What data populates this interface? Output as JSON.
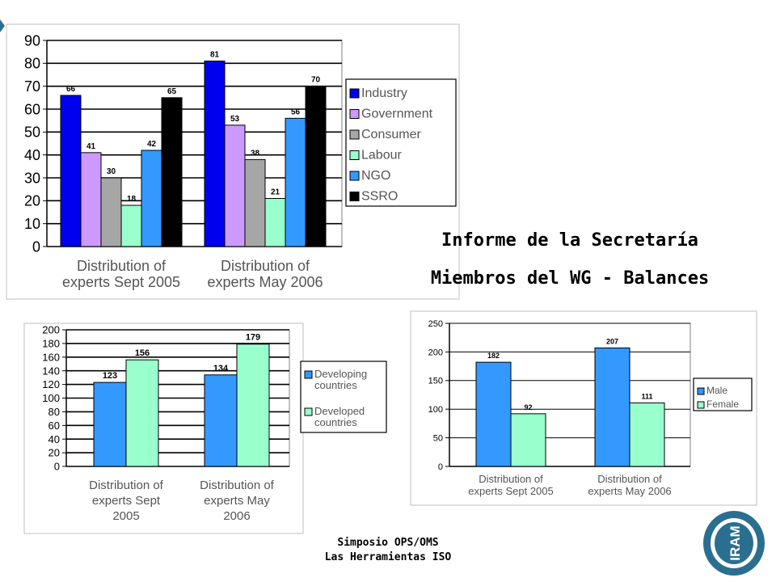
{
  "slide": {
    "title_line1": "Informe de la Secretaría",
    "title_line2": "Miembros del WG - Balances",
    "footer_line1": "Simposio OPS/OMS",
    "footer_line2": "Las Herramientas ISO",
    "logo_text": "IRAM"
  },
  "colors": {
    "Industry": "#0000ee",
    "Government": "#cc99ff",
    "Consumer": "#a6a6a6",
    "Labour": "#99ffcc",
    "NGO": "#3399ff",
    "SSRO": "#000000",
    "Developing countries": "#3399ff",
    "Developed countries": "#99ffcc",
    "Male": "#3399ff",
    "Female": "#99ffcc",
    "logo_ring": "#2a6f8f"
  },
  "chart_data": [
    {
      "type": "bar",
      "title": "",
      "categories": [
        "Distribution of experts Sept 2005",
        "Distribution of experts May 2006"
      ],
      "category_lines": [
        [
          "Distribution of",
          "experts Sept 2005"
        ],
        [
          "Distribution of",
          "experts May 2006"
        ]
      ],
      "series": [
        {
          "name": "Industry",
          "values": [
            66,
            81
          ]
        },
        {
          "name": "Government",
          "values": [
            41,
            53
          ]
        },
        {
          "name": "Consumer",
          "values": [
            30,
            38
          ]
        },
        {
          "name": "Labour",
          "values": [
            18,
            21
          ]
        },
        {
          "name": "NGO",
          "values": [
            42,
            56
          ]
        },
        {
          "name": "SSRO",
          "values": [
            65,
            70
          ]
        }
      ],
      "ylim": [
        0,
        90
      ],
      "yticks": [
        0,
        10,
        20,
        30,
        40,
        50,
        60,
        70,
        80,
        90
      ],
      "xlabel": "",
      "ylabel": "",
      "legend": "right"
    },
    {
      "type": "bar",
      "title": "",
      "categories": [
        "Distribution of experts Sept 2005",
        "Distribution of experts May 2006"
      ],
      "category_lines": [
        [
          "Distribution of",
          "experts Sept",
          "2005"
        ],
        [
          "Distribution of",
          "experts May",
          "2006"
        ]
      ],
      "series": [
        {
          "name": "Developing countries",
          "legend_lines": [
            "Developing",
            "countries"
          ],
          "values": [
            123,
            134
          ]
        },
        {
          "name": "Developed countries",
          "legend_lines": [
            "Developed",
            "countries"
          ],
          "values": [
            156,
            179
          ]
        }
      ],
      "ylim": [
        0,
        200
      ],
      "yticks": [
        0,
        20,
        40,
        60,
        80,
        100,
        120,
        140,
        160,
        180,
        200
      ],
      "xlabel": "",
      "ylabel": "",
      "legend": "right"
    },
    {
      "type": "bar",
      "title": "",
      "categories": [
        "Distribution of experts Sept 2005",
        "Distribution of experts May 2006"
      ],
      "category_lines": [
        [
          "Distribution of",
          "experts Sept 2005"
        ],
        [
          "Distribution of",
          "experts May 2006"
        ]
      ],
      "series": [
        {
          "name": "Male",
          "values": [
            182,
            207
          ]
        },
        {
          "name": "Female",
          "values": [
            92,
            111
          ]
        }
      ],
      "ylim": [
        0,
        250
      ],
      "yticks": [
        0,
        50,
        100,
        150,
        200,
        250
      ],
      "xlabel": "",
      "ylabel": "",
      "legend": "right"
    }
  ]
}
